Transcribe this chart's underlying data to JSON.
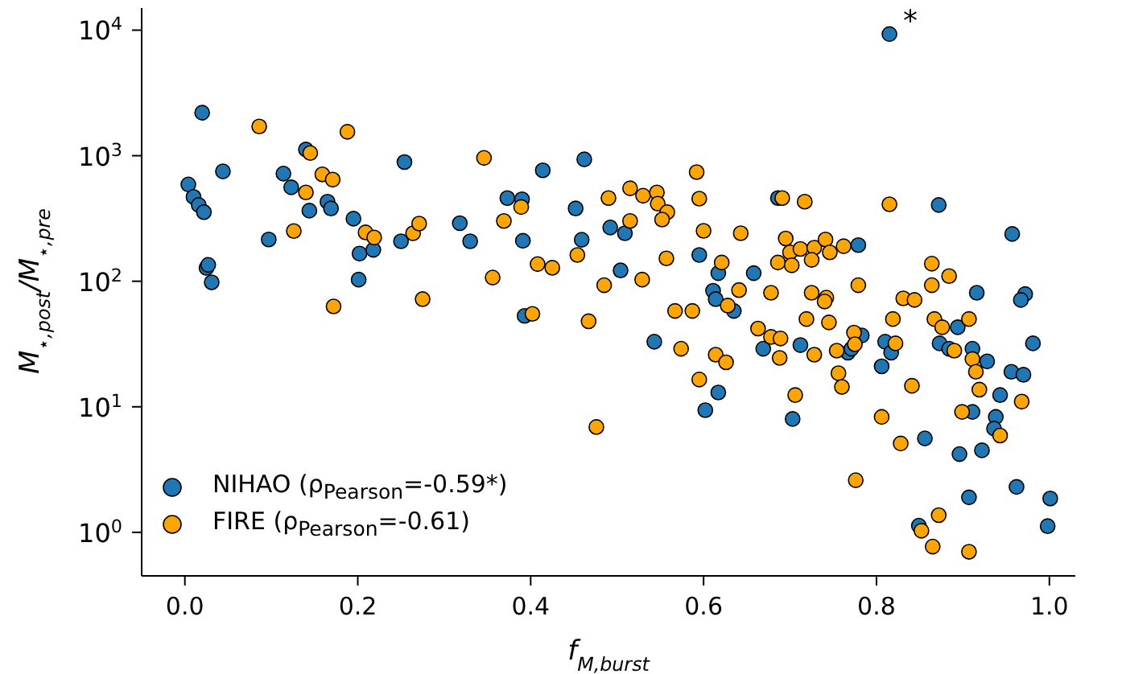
{
  "chart_data": {
    "type": "scatter",
    "xlabel": "f$_{M,burst}$",
    "ylabel": "M$_{⋆,post}$/M$_{⋆,pre}$",
    "xlim": [
      -0.05,
      1.03
    ],
    "ylim": [
      0.45,
      15000
    ],
    "log": "y",
    "legend": "bottom left",
    "marker": "circle",
    "xticks": [
      {
        "value": 0,
        "label": "0.0"
      },
      {
        "value": 0.2,
        "label": "0.2"
      },
      {
        "value": 0.4,
        "label": "0.4"
      },
      {
        "value": 0.6,
        "label": "0.6"
      },
      {
        "value": 0.8,
        "label": "0.8"
      },
      {
        "value": 1,
        "label": "1.0"
      }
    ],
    "yticks": [
      {
        "value": 1,
        "label": "10$^{0}$"
      },
      {
        "value": 10,
        "label": "10$^{1}$"
      },
      {
        "value": 100,
        "label": "10$^{2}$"
      },
      {
        "value": 1000,
        "label": "10$^{3}$"
      },
      {
        "value": 10000,
        "label": "10$^{4}$"
      }
    ],
    "annotations": [
      {
        "text": "*",
        "x": 0.815,
        "y": 9300
      }
    ],
    "series": [
      {
        "name": "NIHAO (ρ$_{Pearson}$=-0.59*)",
        "color": "#1f77b4",
        "x": [
          0.02,
          0.004,
          0.01,
          0.016,
          0.022,
          0.044,
          0.025,
          0.027,
          0.031,
          0.097,
          0.114,
          0.123,
          0.14,
          0.144,
          0.165,
          0.169,
          0.195,
          0.202,
          0.218,
          0.201,
          0.254,
          0.25,
          0.318,
          0.33,
          0.373,
          0.39,
          0.391,
          0.414,
          0.462,
          0.452,
          0.459,
          0.492,
          0.504,
          0.509,
          0.393,
          0.815,
          0.872,
          0.957,
          0.779,
          0.658,
          0.595,
          0.617,
          0.611,
          0.916,
          0.972,
          0.967,
          0.686,
          0.614,
          0.635,
          0.543,
          0.669,
          0.712,
          0.767,
          0.771,
          0.783,
          0.81,
          0.817,
          0.806,
          0.856,
          0.873,
          0.884,
          0.894,
          0.911,
          0.928,
          0.956,
          0.97,
          0.981,
          0.943,
          0.911,
          0.938,
          0.936,
          0.922,
          0.896,
          0.617,
          0.602,
          0.703,
          0.907,
          0.962,
          1.001,
          0.998,
          0.849
        ],
        "values": [
          2200,
          590,
          470,
          405,
          355,
          750,
          128,
          135,
          98,
          215,
          720,
          560,
          1120,
          365,
          430,
          380,
          315,
          166,
          178,
          103,
          890,
          208,
          290,
          208,
          460,
          450,
          210,
          765,
          935,
          380,
          214,
          268,
          122,
          241,
          53,
          9300,
          405,
          238,
          194,
          116,
          162,
          116,
          84,
          81,
          79,
          71,
          460,
          72,
          58,
          33,
          29,
          31,
          27,
          29,
          37,
          33,
          27,
          21,
          5.6,
          32,
          29,
          43,
          29,
          23,
          19,
          18,
          32,
          12.4,
          9.1,
          8.3,
          6.7,
          4.5,
          4.2,
          13,
          9.4,
          8.0,
          1.9,
          2.3,
          1.86,
          1.12,
          1.13
        ]
      },
      {
        "name": "FIRE (ρ$_{Pearson}$=-0.61)",
        "color": "#ffa500",
        "x": [
          0.086,
          0.145,
          0.188,
          0.346,
          0.159,
          0.171,
          0.14,
          0.126,
          0.209,
          0.219,
          0.264,
          0.271,
          0.369,
          0.389,
          0.408,
          0.425,
          0.454,
          0.49,
          0.485,
          0.356,
          0.172,
          0.275,
          0.402,
          0.467,
          0.476,
          0.592,
          0.595,
          0.515,
          0.53,
          0.546,
          0.547,
          0.558,
          0.552,
          0.515,
          0.691,
          0.717,
          0.815,
          0.6,
          0.643,
          0.557,
          0.529,
          0.621,
          0.641,
          0.678,
          0.695,
          0.7,
          0.712,
          0.728,
          0.741,
          0.746,
          0.762,
          0.686,
          0.702,
          0.725,
          0.779,
          0.725,
          0.742,
          0.74,
          0.864,
          0.884,
          0.864,
          0.831,
          0.844,
          0.567,
          0.587,
          0.628,
          0.574,
          0.595,
          0.614,
          0.626,
          0.663,
          0.678,
          0.689,
          0.688,
          0.719,
          0.745,
          0.728,
          0.754,
          0.774,
          0.775,
          0.756,
          0.76,
          0.706,
          0.822,
          0.819,
          0.841,
          0.806,
          0.828,
          0.776,
          0.867,
          0.876,
          0.89,
          0.907,
          0.911,
          0.915,
          0.919,
          0.899,
          0.943,
          0.968,
          0.872,
          0.852,
          0.865,
          0.907
        ],
        "values": [
          1710,
          1050,
          1550,
          960,
          710,
          645,
          510,
          251,
          245,
          223,
          241,
          288,
          302,
          390,
          137,
          128,
          162,
          460,
          93,
          107,
          63,
          72,
          55,
          48,
          6.9,
          740,
          455,
          550,
          480,
          510,
          415,
          355,
          310,
          302,
          460,
          430,
          410,
          252,
          241,
          152,
          103,
          141,
          85,
          81,
          219,
          170,
          181,
          185,
          215,
          170,
          190,
          141,
          134,
          148,
          93,
          81,
          74,
          69,
          138,
          110,
          93,
          73,
          71,
          58,
          58,
          64,
          29,
          16.5,
          26,
          22.6,
          42,
          36,
          35,
          24.5,
          50,
          47,
          26,
          28,
          39,
          31.5,
          18.5,
          14.4,
          12.4,
          32,
          50,
          14.7,
          8.3,
          5.1,
          2.6,
          50,
          43,
          28,
          50,
          24,
          19,
          13.7,
          9.1,
          5.9,
          11,
          1.37,
          1.03,
          0.77,
          0.7
        ]
      }
    ]
  }
}
